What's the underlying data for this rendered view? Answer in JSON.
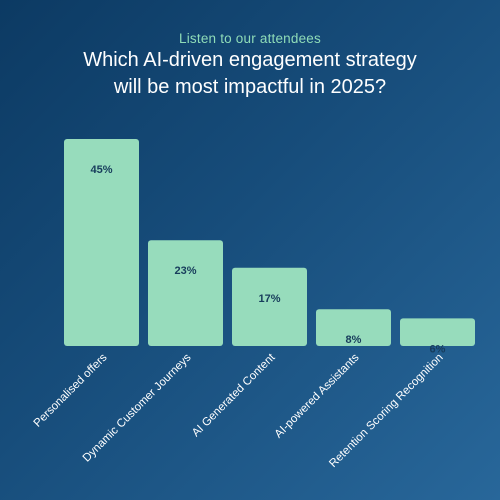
{
  "header": {
    "subtitle": "Listen to our attendees",
    "title_line1": "Which AI-driven engagement strategy",
    "title_line2": "will be most impactful in 2025?"
  },
  "colors": {
    "bar": "#97dcbc",
    "value_label": "#173c5b",
    "category_label": "#ffffff"
  },
  "chart_data": {
    "type": "bar",
    "title": "Which AI-driven engagement strategy will be most impactful in 2025?",
    "subtitle": "Listen to our attendees",
    "categories": [
      "Personalised offers",
      "Dynamic Customer Journeys",
      "AI Generated Content",
      "AI-powered Assistants",
      "Retention Scoring Recognition"
    ],
    "values": [
      45,
      23,
      17,
      8,
      6
    ],
    "value_labels": [
      "45%",
      "23%",
      "17%",
      "8%",
      "6%"
    ],
    "xlabel": "",
    "ylabel": "",
    "ylim": [
      0,
      45
    ],
    "grid": false,
    "legend": "none"
  }
}
